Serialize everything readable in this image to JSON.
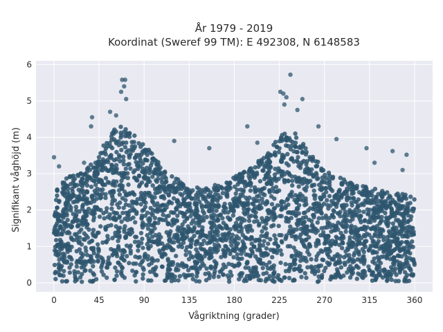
{
  "chart_data": {
    "type": "scatter",
    "title_line1": "År 1979 - 2019",
    "title_line2": "Koordinat (Sweref 99 TM): E 492308, N 6148583",
    "xlabel": "Vågriktning (grader)",
    "ylabel": "Signifikant våghöjd (m)",
    "xlim": [
      -18,
      378
    ],
    "ylim": [
      -0.25,
      6.1
    ],
    "xticks": [
      0,
      45,
      90,
      135,
      180,
      225,
      270,
      315,
      360
    ],
    "yticks": [
      0,
      1,
      2,
      3,
      4,
      5,
      6
    ],
    "grid": true,
    "point_color": "#2e566e",
    "background_color": "#e9e9f1",
    "envelope_max_height": [
      {
        "x": 0,
        "y": 2.6
      },
      {
        "x": 15,
        "y": 2.9
      },
      {
        "x": 30,
        "y": 3.1
      },
      {
        "x": 45,
        "y": 3.5
      },
      {
        "x": 55,
        "y": 4.1
      },
      {
        "x": 65,
        "y": 4.3
      },
      {
        "x": 75,
        "y": 4.2
      },
      {
        "x": 90,
        "y": 3.8
      },
      {
        "x": 105,
        "y": 3.3
      },
      {
        "x": 120,
        "y": 2.9
      },
      {
        "x": 135,
        "y": 2.6
      },
      {
        "x": 150,
        "y": 2.6
      },
      {
        "x": 165,
        "y": 2.7
      },
      {
        "x": 180,
        "y": 2.9
      },
      {
        "x": 195,
        "y": 3.1
      },
      {
        "x": 210,
        "y": 3.5
      },
      {
        "x": 225,
        "y": 4.0
      },
      {
        "x": 235,
        "y": 4.2
      },
      {
        "x": 245,
        "y": 4.0
      },
      {
        "x": 260,
        "y": 3.4
      },
      {
        "x": 275,
        "y": 3.0
      },
      {
        "x": 300,
        "y": 2.7
      },
      {
        "x": 330,
        "y": 2.5
      },
      {
        "x": 360,
        "y": 2.4
      }
    ],
    "outliers": [
      {
        "x": 68,
        "y": 5.58
      },
      {
        "x": 71,
        "y": 5.58
      },
      {
        "x": 70,
        "y": 5.4
      },
      {
        "x": 67,
        "y": 5.25
      },
      {
        "x": 72,
        "y": 5.05
      },
      {
        "x": 56,
        "y": 4.7
      },
      {
        "x": 62,
        "y": 4.6
      },
      {
        "x": 38,
        "y": 4.55
      },
      {
        "x": 37,
        "y": 4.3
      },
      {
        "x": 236,
        "y": 5.72
      },
      {
        "x": 226,
        "y": 5.25
      },
      {
        "x": 229,
        "y": 5.2
      },
      {
        "x": 232,
        "y": 5.1
      },
      {
        "x": 248,
        "y": 5.05
      },
      {
        "x": 230,
        "y": 4.9
      },
      {
        "x": 243,
        "y": 4.75
      },
      {
        "x": 193,
        "y": 4.3
      },
      {
        "x": 264,
        "y": 4.3
      },
      {
        "x": 120,
        "y": 3.9
      },
      {
        "x": 155,
        "y": 3.7
      },
      {
        "x": 203,
        "y": 3.85
      },
      {
        "x": 282,
        "y": 3.95
      },
      {
        "x": 312,
        "y": 3.7
      },
      {
        "x": 338,
        "y": 3.62
      },
      {
        "x": 0,
        "y": 3.45
      },
      {
        "x": 5,
        "y": 3.2
      },
      {
        "x": 352,
        "y": 3.52
      },
      {
        "x": 348,
        "y": 3.1
      },
      {
        "x": 30,
        "y": 3.3
      },
      {
        "x": 320,
        "y": 3.3
      }
    ]
  }
}
